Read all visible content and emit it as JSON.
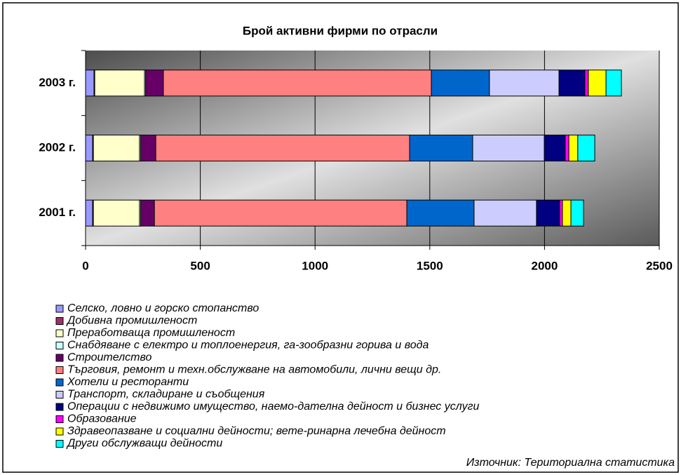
{
  "chart_data": {
    "type": "stacked-barh",
    "title": "Брой активни фирми по отрасли",
    "categories": [
      "2001 г.",
      "2002 г.",
      "2003 г."
    ],
    "series": [
      {
        "name": "Селско, ловно и горско стопанство",
        "color": "#9999ff",
        "values": [
          31,
          31,
          37
        ]
      },
      {
        "name": "Добивна промишленост",
        "color": "#993366",
        "values": [
          3,
          3,
          3
        ]
      },
      {
        "name": "Преработваща промишленост",
        "color": "#ffffcc",
        "values": [
          201,
          201,
          217
        ]
      },
      {
        "name": "Снабдяване с електро и топлоенергия, га-зообразни горива и вода",
        "color": "#ccffff",
        "values": [
          5,
          5,
          5
        ]
      },
      {
        "name": "Строителство",
        "color": "#660066",
        "values": [
          60,
          66,
          77
        ]
      },
      {
        "name": "Търговия, ремонт и техн.обслужване на автомобили, лични вещи др.",
        "color": "#ff8080",
        "values": [
          1100,
          1106,
          1168
        ]
      },
      {
        "name": "Хотели и ресторанти",
        "color": "#0066cc",
        "values": [
          293,
          275,
          253
        ]
      },
      {
        "name": "Транспорт, складиране и съобщения",
        "color": "#ccccff",
        "values": [
          272,
          312,
          303
        ]
      },
      {
        "name": "Операции с недвижимо имущество, наемо-дателна дейност и бизнес услуги",
        "color": "#000080",
        "values": [
          101,
          91,
          113
        ]
      },
      {
        "name": "Образование",
        "color": "#ff00ff",
        "values": [
          12,
          16,
          15
        ]
      },
      {
        "name": "Здравеопазване и социални дейности; вете-ринарна лечебна дейност",
        "color": "#ffff00",
        "values": [
          37,
          39,
          77
        ]
      },
      {
        "name": "Други обслужващи дейности",
        "color": "#00ffff",
        "values": [
          55,
          74,
          67
        ]
      }
    ],
    "xlim": [
      0,
      2500
    ],
    "xticks": [
      0,
      500,
      1000,
      1500,
      2000,
      2500
    ],
    "grid": true,
    "legend": "bottom",
    "source": "Източник: Териториална статистика"
  }
}
